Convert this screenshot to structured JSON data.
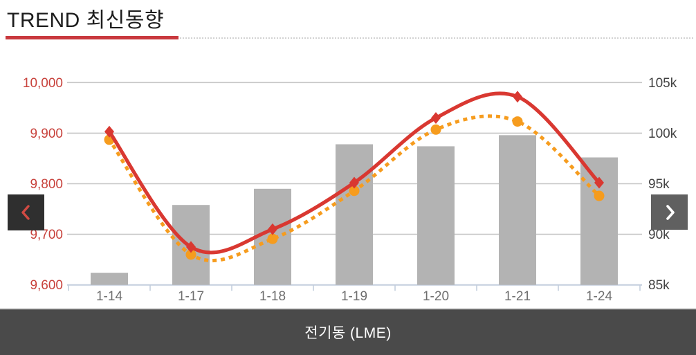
{
  "header": {
    "title": "TREND 최신동향"
  },
  "nav": {
    "prev": "previous",
    "next": "next"
  },
  "footer": {
    "label": "전기동 (LME)"
  },
  "colors": {
    "title_underline": "#c9393e",
    "bar": "#b3b3b3",
    "line_solid": "#d93831",
    "line_dotted": "#f69c1e",
    "gridline": "#c6c6c6",
    "axis_line": "#c3cedd",
    "left_axis_labels": "#c8423c",
    "right_axis_labels": "#424242",
    "x_axis_labels": "#6e6e6e",
    "prev_button_bg": "#2f2f2f",
    "prev_chevron": "#d24a43",
    "next_button_bg": "#606060",
    "next_chevron": "#ffffff",
    "footer_bg": "#4a4a4a"
  },
  "chart_data": {
    "type": "combo (bar + spline lines)",
    "title": "",
    "legend": "none",
    "grid": true,
    "categories": [
      "1-14",
      "1-17",
      "1-18",
      "1-19",
      "1-20",
      "1-21",
      "1-24"
    ],
    "series": [
      {
        "name": "volume-bars",
        "type": "bar",
        "axis": "right",
        "unit": "k",
        "values": [
          86.2,
          92.9,
          94.5,
          98.9,
          98.7,
          99.8,
          97.6
        ]
      },
      {
        "name": "price-solid-line",
        "type": "spline",
        "axis": "left",
        "marker": "diamond",
        "values": [
          9903,
          9675,
          9710,
          9802,
          9930,
          9972,
          9802
        ]
      },
      {
        "name": "price-dotted-line",
        "type": "spline-dotted",
        "axis": "left",
        "marker": "circle",
        "values": [
          9887,
          9660,
          9691,
          9786,
          9907,
          9923,
          9776
        ]
      }
    ],
    "left_axis": {
      "min": 9600,
      "max": 10000,
      "tick_labels": [
        "10,000",
        "9,900",
        "9,800",
        "9,700",
        "9,600"
      ]
    },
    "right_axis": {
      "min": 85,
      "max": 105,
      "unit": "k",
      "tick_labels": [
        "105k",
        "100k",
        "95k",
        "90k",
        "85k"
      ]
    },
    "xlabel": "",
    "ylabel": ""
  }
}
